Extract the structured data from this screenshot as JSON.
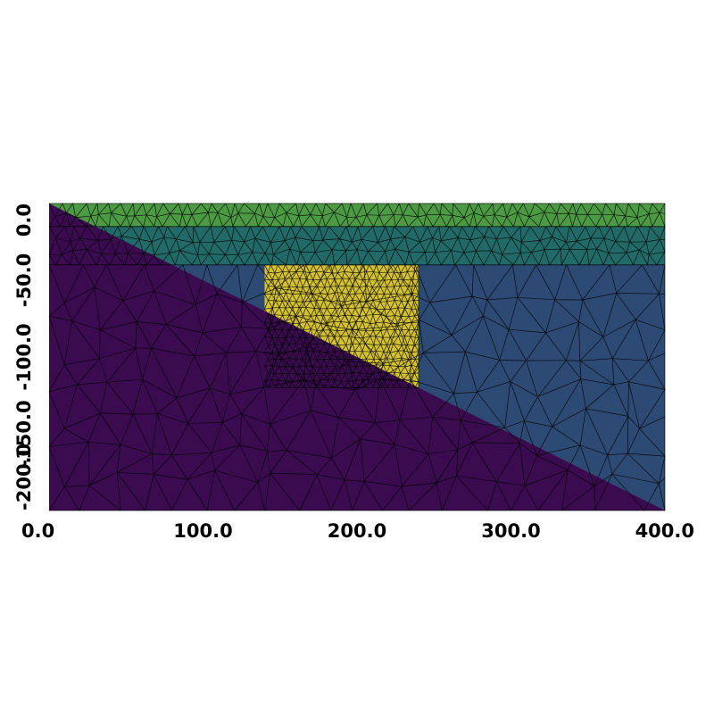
{
  "x_axis": {
    "min": 0,
    "max": 400,
    "ticks": [
      "0.0",
      "100.0",
      "200.0",
      "300.0",
      "400.0"
    ]
  },
  "y_axis": {
    "min": -200,
    "max": 0,
    "ticks": [
      "0.0",
      "-50.0",
      "-100.0",
      "-150.0",
      "-200.0"
    ]
  },
  "regions": [
    {
      "name": "top-layer",
      "color": "#4d9a44",
      "polygon": [
        [
          0,
          0
        ],
        [
          400,
          0
        ],
        [
          400,
          -15
        ],
        [
          0,
          -15
        ]
      ]
    },
    {
      "name": "second-layer",
      "color": "#216a68",
      "polygon": [
        [
          0,
          -15
        ],
        [
          400,
          -15
        ],
        [
          400,
          -40
        ],
        [
          0,
          -40
        ]
      ]
    },
    {
      "name": "right-wedge",
      "color": "#2d4a74",
      "polygon": [
        [
          0,
          -40
        ],
        [
          400,
          -40
        ],
        [
          400,
          -200
        ]
      ]
    },
    {
      "name": "inclusion-block",
      "color": "#d4c231",
      "polygon": [
        [
          140,
          -40
        ],
        [
          240,
          -40
        ],
        [
          240,
          -120
        ],
        [
          140,
          -80
        ]
      ]
    },
    {
      "name": "lower-left-triangle",
      "color": "#3b0b50",
      "polygon": [
        [
          0,
          0
        ],
        [
          0,
          -200
        ],
        [
          400,
          -200
        ]
      ]
    }
  ],
  "colors": {
    "mesh_line": "#000000",
    "background": "#ffffff"
  }
}
